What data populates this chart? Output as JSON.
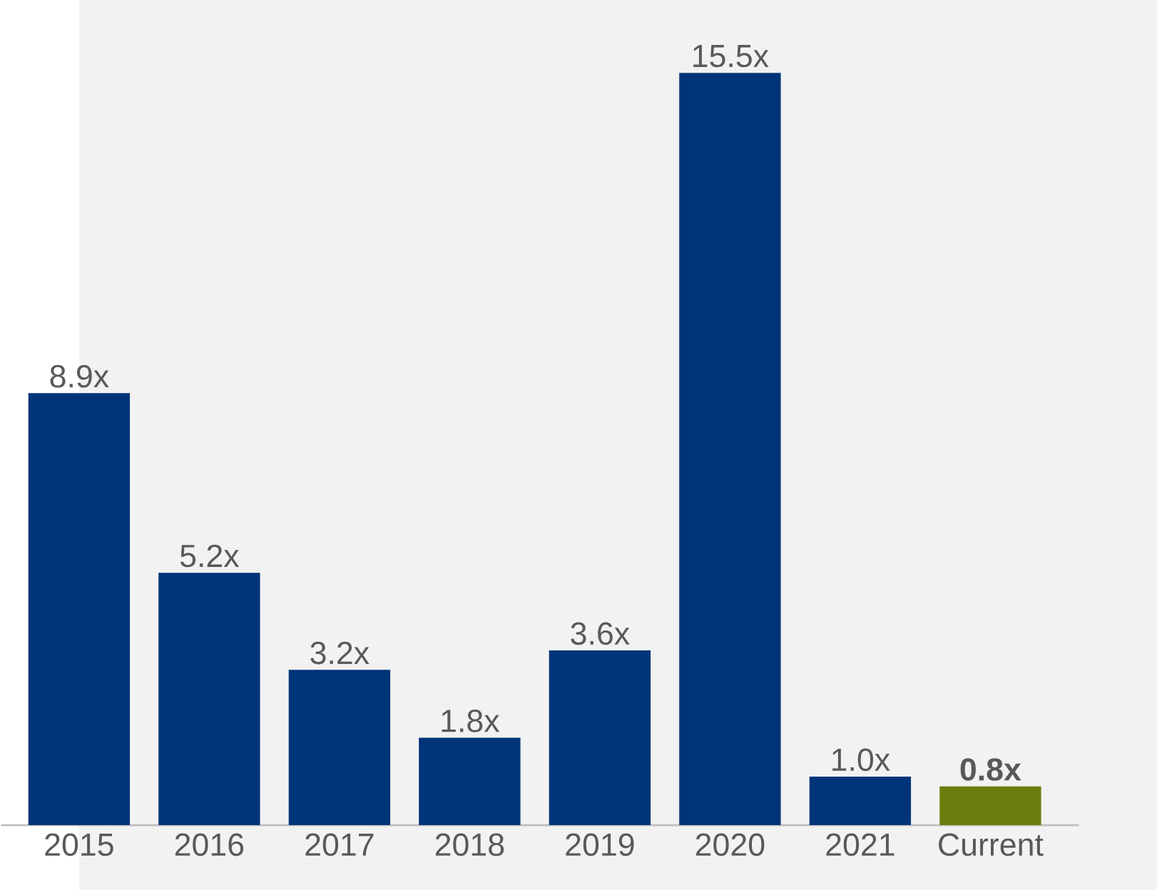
{
  "chart_data": {
    "type": "bar",
    "categories": [
      "2015",
      "2016",
      "2017",
      "2018",
      "2019",
      "2020",
      "2021",
      "Current"
    ],
    "values": [
      8.9,
      5.2,
      3.2,
      1.8,
      3.6,
      15.5,
      1.0,
      0.8
    ],
    "colors": [
      "#003478",
      "#003478",
      "#003478",
      "#003478",
      "#003478",
      "#003478",
      "#003478",
      "#6b7d0f"
    ],
    "value_labels": [
      "8.9x",
      "5.2x",
      "3.2x",
      "1.8x",
      "3.6x",
      "15.5x",
      "1.0x",
      "**0.8x**"
    ]
  }
}
